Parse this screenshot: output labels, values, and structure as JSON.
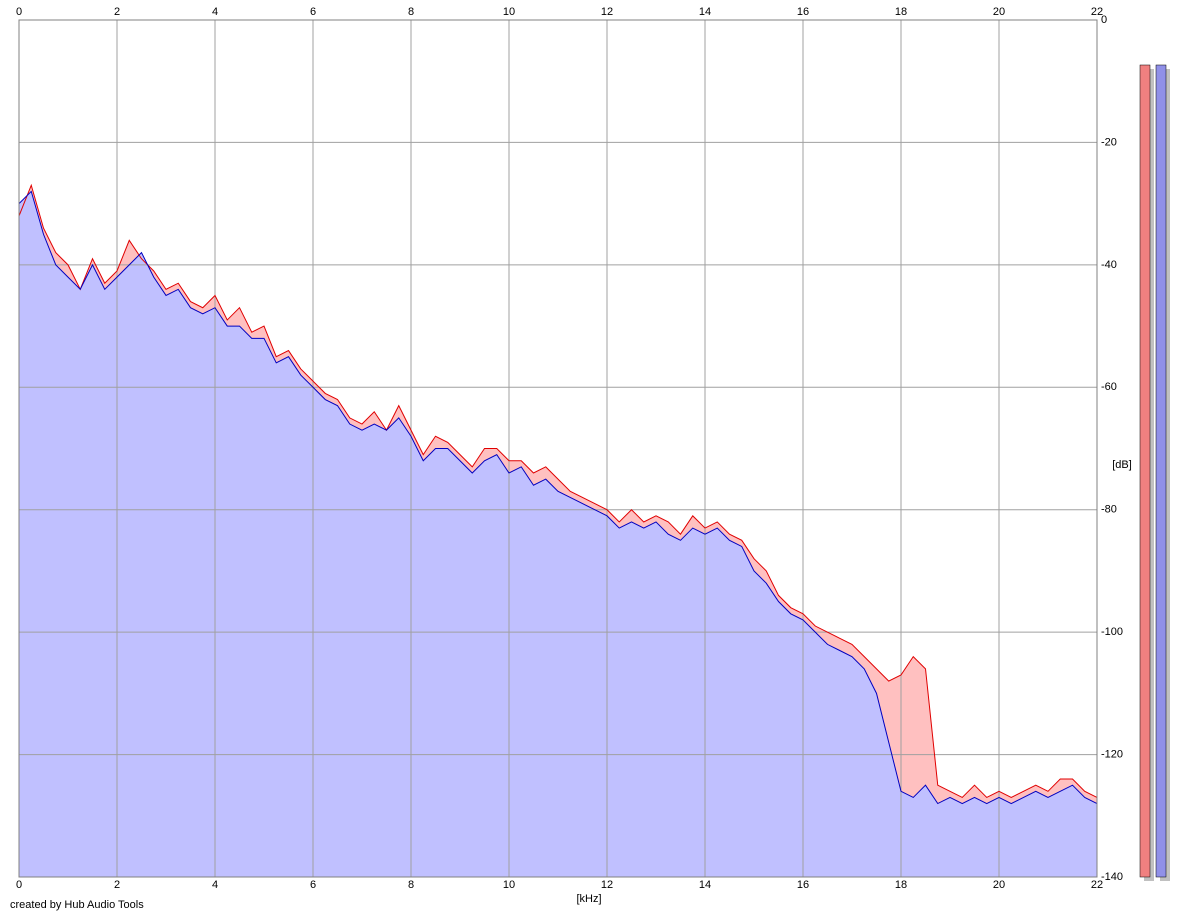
{
  "chart_data": {
    "type": "area",
    "x_label": "[kHz]",
    "y_label": "[dB]",
    "credit": "created by Hub Audio Tools",
    "xlim": [
      0,
      22
    ],
    "xticks": [
      0,
      2,
      4,
      6,
      8,
      10,
      12,
      14,
      16,
      18,
      20,
      22
    ],
    "ylim": [
      -140,
      0
    ],
    "yticks": [
      0,
      -20,
      -40,
      -60,
      -80,
      -100,
      -120,
      -140
    ],
    "grid": true,
    "x": [
      0,
      0.25,
      0.5,
      0.75,
      1,
      1.25,
      1.5,
      1.75,
      2,
      2.25,
      2.5,
      2.75,
      3,
      3.25,
      3.5,
      3.75,
      4,
      4.25,
      4.5,
      4.75,
      5,
      5.25,
      5.5,
      5.75,
      6,
      6.25,
      6.5,
      6.75,
      7,
      7.25,
      7.5,
      7.75,
      8,
      8.25,
      8.5,
      8.75,
      9,
      9.25,
      9.5,
      9.75,
      10,
      10.25,
      10.5,
      10.75,
      11,
      11.25,
      11.5,
      11.75,
      12,
      12.25,
      12.5,
      12.75,
      13,
      13.25,
      13.5,
      13.75,
      14,
      14.25,
      14.5,
      14.75,
      15,
      15.25,
      15.5,
      15.75,
      16,
      16.25,
      16.5,
      16.75,
      17,
      17.25,
      17.5,
      17.75,
      18,
      18.25,
      18.5,
      18.75,
      19,
      19.25,
      19.5,
      19.75,
      20,
      20.25,
      20.5,
      20.75,
      21,
      21.25,
      21.5,
      21.75,
      22
    ],
    "series": [
      {
        "color": "#e00000",
        "fill": "#ffc0c0",
        "values": [
          -32,
          -27,
          -34,
          -38,
          -40,
          -44,
          -39,
          -43,
          -41,
          -36,
          -39,
          -41,
          -44,
          -43,
          -46,
          -47,
          -45,
          -49,
          -47,
          -51,
          -50,
          -55,
          -54,
          -57,
          -59,
          -61,
          -62,
          -65,
          -66,
          -64,
          -67,
          -63,
          -67,
          -71,
          -68,
          -69,
          -71,
          -73,
          -70,
          -70,
          -72,
          -72,
          -74,
          -73,
          -75,
          -77,
          -78,
          -79,
          -80,
          -82,
          -80,
          -82,
          -81,
          -82,
          -84,
          -81,
          -83,
          -82,
          -84,
          -85,
          -88,
          -90,
          -94,
          -96,
          -97,
          -99,
          -100,
          -101,
          -102,
          -104,
          -106,
          -108,
          -107,
          -104,
          -106,
          -125,
          -126,
          -127,
          -125,
          -127,
          -126,
          -127,
          -126,
          -125,
          -126,
          -124,
          -124,
          -126,
          -127
        ]
      },
      {
        "color": "#0000c0",
        "fill": "#c0c0ff",
        "values": [
          -30,
          -28,
          -35,
          -40,
          -42,
          -44,
          -40,
          -44,
          -42,
          -40,
          -38,
          -42,
          -45,
          -44,
          -47,
          -48,
          -47,
          -50,
          -50,
          -52,
          -52,
          -56,
          -55,
          -58,
          -60,
          -62,
          -63,
          -66,
          -67,
          -66,
          -67,
          -65,
          -68,
          -72,
          -70,
          -70,
          -72,
          -74,
          -72,
          -71,
          -74,
          -73,
          -76,
          -75,
          -77,
          -78,
          -79,
          -80,
          -81,
          -83,
          -82,
          -83,
          -82,
          -84,
          -85,
          -83,
          -84,
          -83,
          -85,
          -86,
          -90,
          -92,
          -95,
          -97,
          -98,
          -100,
          -102,
          -103,
          -104,
          -106,
          -110,
          -118,
          -126,
          -127,
          -125,
          -128,
          -127,
          -128,
          -127,
          -128,
          -127,
          -128,
          -127,
          -126,
          -127,
          -126,
          -125,
          -127,
          -128
        ]
      }
    ]
  }
}
